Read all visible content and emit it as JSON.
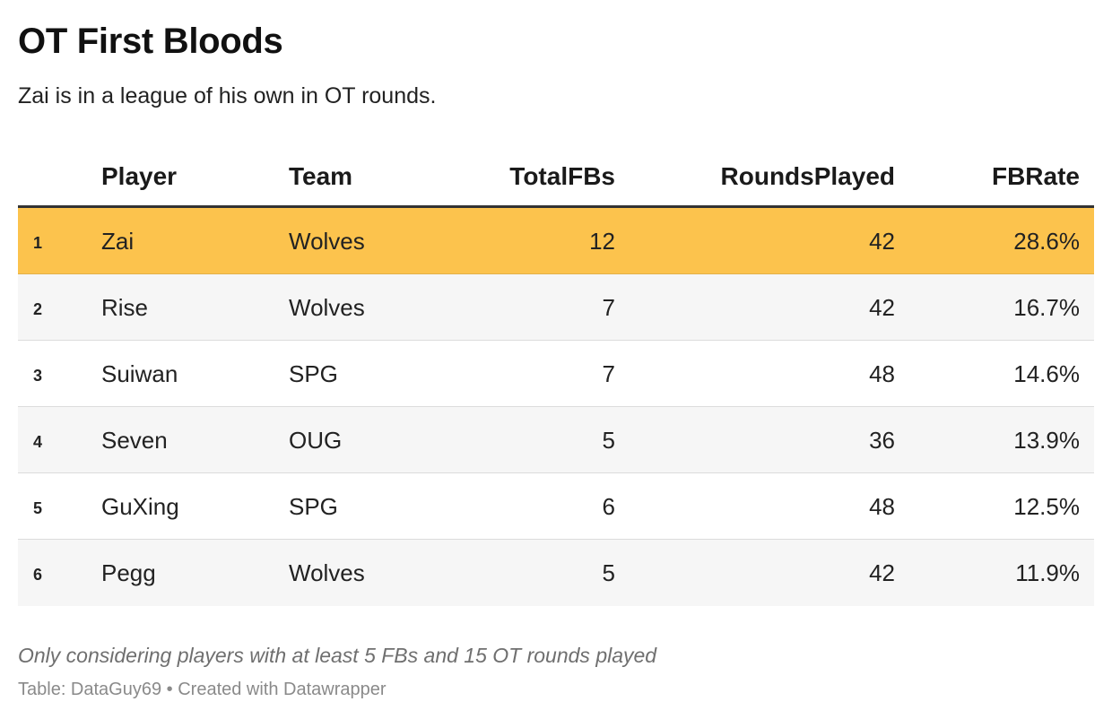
{
  "title": "OT First Bloods",
  "subtitle": "Zai is in a league of his own in OT rounds.",
  "chart_data": {
    "type": "table",
    "columns": [
      "Player",
      "Team",
      "TotalFBs",
      "RoundsPlayed",
      "FBRate"
    ],
    "rows": [
      {
        "rank": "1",
        "player": "Zai",
        "team": "Wolves",
        "total_fbs": "12",
        "rounds_played": "42",
        "fb_rate": "28.6%",
        "highlight": true
      },
      {
        "rank": "2",
        "player": "Rise",
        "team": "Wolves",
        "total_fbs": "7",
        "rounds_played": "42",
        "fb_rate": "16.7%",
        "highlight": false
      },
      {
        "rank": "3",
        "player": "Suiwan",
        "team": "SPG",
        "total_fbs": "7",
        "rounds_played": "48",
        "fb_rate": "14.6%",
        "highlight": false
      },
      {
        "rank": "4",
        "player": "Seven",
        "team": "OUG",
        "total_fbs": "5",
        "rounds_played": "36",
        "fb_rate": "13.9%",
        "highlight": false
      },
      {
        "rank": "5",
        "player": "GuXing",
        "team": "SPG",
        "total_fbs": "6",
        "rounds_played": "48",
        "fb_rate": "12.5%",
        "highlight": false
      },
      {
        "rank": "6",
        "player": "Pegg",
        "team": "Wolves",
        "total_fbs": "5",
        "rounds_played": "42",
        "fb_rate": "11.9%",
        "highlight": false
      }
    ]
  },
  "colors": {
    "highlight": "#fcc34d",
    "row_shaded": "#f6f6f6",
    "row_plain": "#ffffff"
  },
  "notes": "Only considering players with at least 5 FBs and 15 OT rounds played",
  "source": "Table: DataGuy69 • Created with Datawrapper"
}
